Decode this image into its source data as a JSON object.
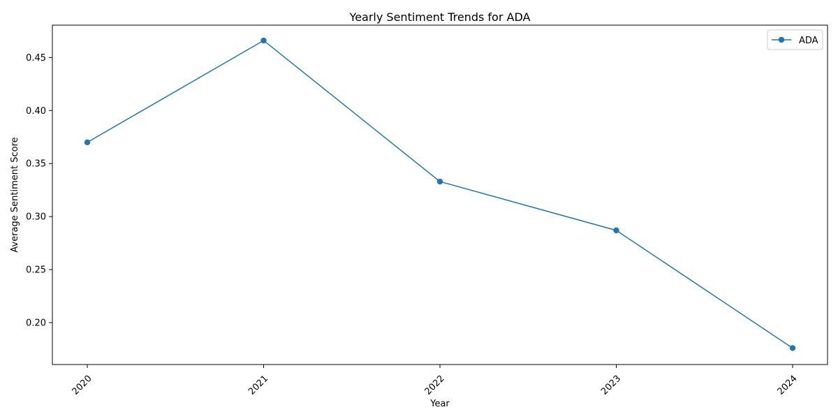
{
  "chart_data": {
    "type": "line",
    "title": "Yearly Sentiment Trends for ADA",
    "xlabel": "Year",
    "ylabel": "Average Sentiment Score",
    "categories": [
      "2020",
      "2021",
      "2022",
      "2023",
      "2024"
    ],
    "series": [
      {
        "name": "ADA",
        "values": [
          0.37,
          0.466,
          0.333,
          0.287,
          0.176
        ],
        "color": "#1f77b4",
        "marker": "circle"
      }
    ],
    "ylim": [
      0.1605,
      0.4805
    ],
    "yticks": [
      "0.20",
      "0.25",
      "0.30",
      "0.35",
      "0.40",
      "0.45"
    ],
    "ytick_values": [
      0.2,
      0.25,
      0.3,
      0.35,
      0.4,
      0.45
    ],
    "xtick_rotation": "45",
    "grid": false,
    "legend_position": "top-right"
  }
}
